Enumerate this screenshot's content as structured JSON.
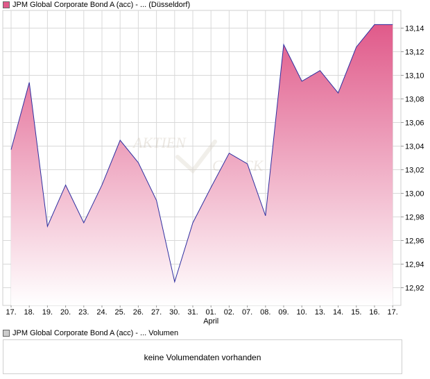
{
  "legend_price": {
    "label": "JPM Global Corporate Bond A (acc) - ... (Düsseldorf)",
    "swatch_color": "#e05a8a"
  },
  "legend_volume": {
    "label": "JPM Global Corporate Bond A (acc) - ... Volumen",
    "swatch_color": "#cccccc"
  },
  "watermark": {
    "line1": "AKTIEN",
    "line2": "CHECK"
  },
  "volume_message": "keine Volumendaten vorhanden",
  "colors": {
    "line": "#2f2fa0",
    "fill_top": "#e05a8a",
    "fill_bottom": "#ffffff",
    "grid": "#d8d8d8",
    "axis": "#999999"
  },
  "chart_data": {
    "type": "area",
    "categories": [
      "17.",
      "18.",
      "19.",
      "20.",
      "23.",
      "24.",
      "25.",
      "26.",
      "27.",
      "30.",
      "31.",
      "01.",
      "02.",
      "07.",
      "08.",
      "09.",
      "10.",
      "13.",
      "14.",
      "15.",
      "16.",
      "17."
    ],
    "month_label": {
      "text": "April",
      "category_index": 11
    },
    "values": [
      13.037,
      13.094,
      12.972,
      13.007,
      12.975,
      13.007,
      13.045,
      13.026,
      12.994,
      12.925,
      12.975,
      13.005,
      13.034,
      13.025,
      12.981,
      13.126,
      13.095,
      13.104,
      13.085,
      13.124,
      13.143,
      13.143
    ],
    "yticks": [
      "12,92",
      "12,94",
      "12,96",
      "12,98",
      "13,00",
      "13,02",
      "13,04",
      "13,06",
      "13,08",
      "13,10",
      "13,12",
      "13,14"
    ],
    "ylim": [
      12.905,
      13.155
    ],
    "grid": true,
    "title": "",
    "xlabel": "",
    "ylabel": ""
  }
}
